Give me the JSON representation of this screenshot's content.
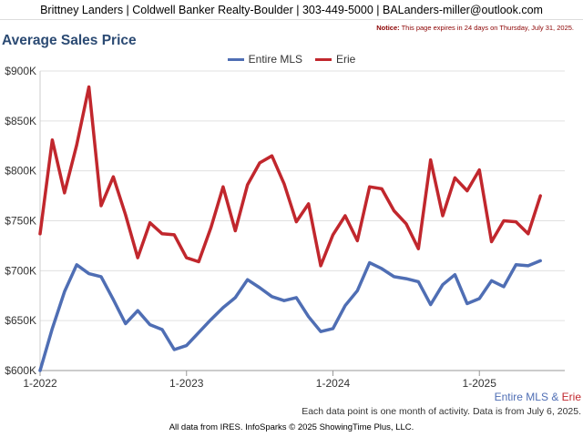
{
  "header": {
    "contact": "Brittney Landers | Coldwell Banker Realty-Boulder | 303-449-5000 | BALanders-miller@outlook.com"
  },
  "notice": {
    "label": "Notice:",
    "text": "This page expires in 24 days on Thursday, July 31, 2025."
  },
  "footnote": "Each data point is one month of activity. Data is from July 6, 2025.",
  "footer": "All data from IRES. InfoSparks © 2025 ShowingTime Plus, LLC.",
  "bottom_legend": {
    "series_a": "Entire MLS",
    "separator": " & ",
    "series_b": "Erie"
  },
  "colors": {
    "entire_mls": "#4f6eb4",
    "erie": "#c1272d",
    "grid": "#e0e0e0",
    "title": "#2b4a73"
  },
  "chart_data": {
    "type": "line",
    "title": "Average Sales Price",
    "x_start": "2022-01",
    "x_ticks": [
      "1-2022",
      "1-2023",
      "1-2024",
      "1-2025"
    ],
    "x_tick_months": [
      0,
      12,
      24,
      36
    ],
    "ylim": [
      600000,
      900000
    ],
    "y_ticks": [
      600000,
      650000,
      700000,
      750000,
      800000,
      850000,
      900000
    ],
    "y_tick_labels": [
      "$600K",
      "$650K",
      "$700K",
      "$750K",
      "$800K",
      "$850K",
      "$900K"
    ],
    "grid": true,
    "legend_position": "top-center",
    "series": [
      {
        "name": "Entire MLS",
        "color": "#4f6eb4",
        "values": [
          600000,
          642000,
          679000,
          706000,
          697000,
          694000,
          671000,
          647000,
          660000,
          646000,
          641000,
          621000,
          625000,
          638000,
          651000,
          663000,
          673000,
          691000,
          683000,
          674000,
          670000,
          673000,
          654000,
          639000,
          642000,
          665000,
          680000,
          708000,
          702000,
          694000,
          692000,
          689000,
          666000,
          686000,
          696000,
          667000,
          672000,
          690000,
          684000,
          706000,
          705000,
          710000
        ]
      },
      {
        "name": "Erie",
        "color": "#c1272d",
        "values": [
          737000,
          831000,
          778000,
          826000,
          884000,
          765000,
          794000,
          756000,
          713000,
          748000,
          737000,
          736000,
          713000,
          709000,
          743000,
          784000,
          740000,
          786000,
          808000,
          815000,
          787000,
          749000,
          767000,
          705000,
          736000,
          755000,
          730000,
          784000,
          782000,
          760000,
          747000,
          722000,
          811000,
          755000,
          793000,
          780000,
          801000,
          729000,
          750000,
          749000,
          737000,
          775000
        ]
      }
    ]
  }
}
